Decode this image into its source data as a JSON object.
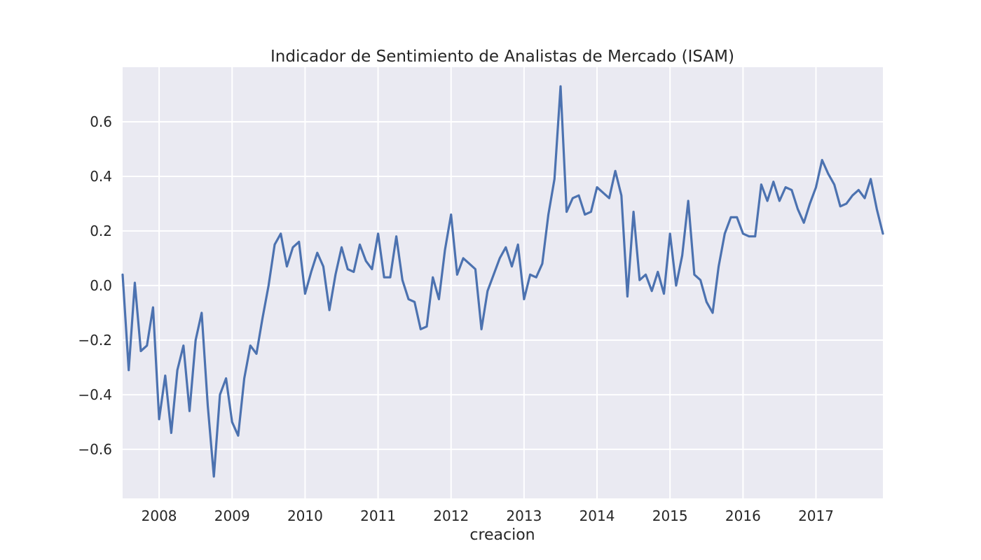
{
  "chart_data": {
    "type": "line",
    "title": "Indicador de Sentimiento de Analistas de Mercado (ISAM)",
    "xlabel": "creacion",
    "ylabel": "",
    "x_ticks": [
      "2008",
      "2009",
      "2010",
      "2011",
      "2012",
      "2013",
      "2014",
      "2015",
      "2016",
      "2017"
    ],
    "y_ticks": [
      0.6,
      0.4,
      0.2,
      0.0,
      -0.2,
      -0.4,
      -0.6
    ],
    "y_tick_labels": [
      "0.6",
      "0.4",
      "0.2",
      "0.0",
      "−0.2",
      "−0.4",
      "−0.6"
    ],
    "xlim": [
      "2007-07",
      "2017-12"
    ],
    "ylim": [
      -0.78,
      0.8
    ],
    "grid": true,
    "series": [
      {
        "color": "#4c72b0",
        "x": [
          "2007-07",
          "2007-08",
          "2007-09",
          "2007-10",
          "2007-11",
          "2007-12",
          "2008-01",
          "2008-02",
          "2008-03",
          "2008-04",
          "2008-05",
          "2008-06",
          "2008-07",
          "2008-08",
          "2008-09",
          "2008-10",
          "2008-11",
          "2008-12",
          "2009-01",
          "2009-02",
          "2009-03",
          "2009-04",
          "2009-05",
          "2009-06",
          "2009-07",
          "2009-08",
          "2009-09",
          "2009-10",
          "2009-11",
          "2009-12",
          "2010-01",
          "2010-02",
          "2010-03",
          "2010-04",
          "2010-05",
          "2010-06",
          "2010-07",
          "2010-08",
          "2010-09",
          "2010-10",
          "2010-11",
          "2010-12",
          "2011-01",
          "2011-02",
          "2011-03",
          "2011-04",
          "2011-05",
          "2011-06",
          "2011-07",
          "2011-08",
          "2011-09",
          "2011-10",
          "2011-11",
          "2011-12",
          "2012-01",
          "2012-02",
          "2012-03",
          "2012-04",
          "2012-05",
          "2012-06",
          "2012-07",
          "2012-08",
          "2012-09",
          "2012-10",
          "2012-11",
          "2012-12",
          "2013-01",
          "2013-02",
          "2013-03",
          "2013-04",
          "2013-05",
          "2013-06",
          "2013-07",
          "2013-08",
          "2013-09",
          "2013-10",
          "2013-11",
          "2013-12",
          "2014-01",
          "2014-02",
          "2014-03",
          "2014-04",
          "2014-05",
          "2014-06",
          "2014-07",
          "2014-08",
          "2014-09",
          "2014-10",
          "2014-11",
          "2014-12",
          "2015-01",
          "2015-02",
          "2015-03",
          "2015-04",
          "2015-05",
          "2015-06",
          "2015-07",
          "2015-08",
          "2015-09",
          "2015-10",
          "2015-11",
          "2015-12",
          "2016-01",
          "2016-02",
          "2016-03",
          "2016-04",
          "2016-05",
          "2016-06",
          "2016-07",
          "2016-08",
          "2016-09",
          "2016-10",
          "2016-11",
          "2016-12",
          "2017-01",
          "2017-02",
          "2017-03",
          "2017-04",
          "2017-05",
          "2017-06",
          "2017-07",
          "2017-08",
          "2017-09",
          "2017-10",
          "2017-11",
          "2017-12"
        ],
        "values": [
          0.04,
          -0.31,
          0.01,
          -0.24,
          -0.22,
          -0.08,
          -0.49,
          -0.33,
          -0.54,
          -0.31,
          -0.22,
          -0.46,
          -0.2,
          -0.1,
          -0.44,
          -0.7,
          -0.4,
          -0.34,
          -0.5,
          -0.55,
          -0.34,
          -0.22,
          -0.25,
          -0.12,
          0.0,
          0.15,
          0.19,
          0.07,
          0.14,
          0.16,
          -0.03,
          0.05,
          0.12,
          0.07,
          -0.09,
          0.04,
          0.14,
          0.06,
          0.05,
          0.15,
          0.09,
          0.06,
          0.19,
          0.03,
          0.03,
          0.18,
          0.02,
          -0.05,
          -0.06,
          -0.16,
          -0.15,
          0.03,
          -0.05,
          0.13,
          0.26,
          0.04,
          0.1,
          0.08,
          0.06,
          -0.16,
          -0.02,
          0.04,
          0.1,
          0.14,
          0.07,
          0.15,
          -0.05,
          0.04,
          0.03,
          0.08,
          0.26,
          0.39,
          0.73,
          0.27,
          0.32,
          0.33,
          0.26,
          0.27,
          0.36,
          0.34,
          0.32,
          0.42,
          0.33,
          -0.04,
          0.27,
          0.02,
          0.04,
          -0.02,
          0.05,
          -0.03,
          0.19,
          0.0,
          0.11,
          0.31,
          0.04,
          0.02,
          -0.06,
          -0.1,
          0.07,
          0.19,
          0.25,
          0.25,
          0.19,
          0.18,
          0.18,
          0.37,
          0.31,
          0.38,
          0.31,
          0.36,
          0.35,
          0.28,
          0.23,
          0.3,
          0.36,
          0.46,
          0.41,
          0.37,
          0.29,
          0.3,
          0.33,
          0.35,
          0.32,
          0.39,
          0.28,
          0.19
        ]
      }
    ]
  }
}
